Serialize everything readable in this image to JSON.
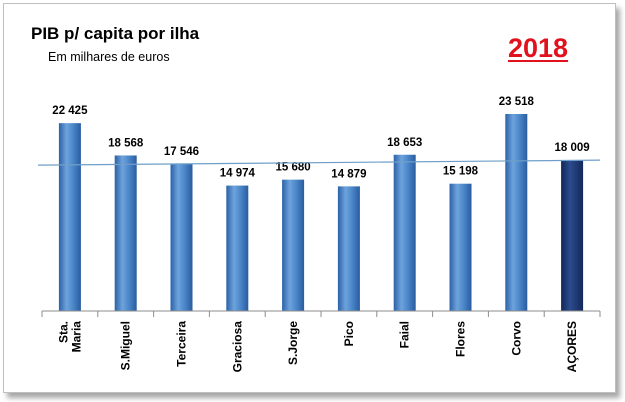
{
  "header": {
    "title": "PIB p/ capita por ilha",
    "subtitle": "Em milhares de euros",
    "year": "2018"
  },
  "colors": {
    "bar": "#3f7bc2",
    "bar_highlight": "#1f3a73",
    "reference_line": "#6f9fc8",
    "year": "#e0121d"
  },
  "chart_data": {
    "type": "bar",
    "categories": [
      [
        "Sta.",
        "Maria"
      ],
      [
        "S.Miguel"
      ],
      [
        "Terceira"
      ],
      [
        "Graciosa"
      ],
      [
        "S.Jorge"
      ],
      [
        "Pico"
      ],
      [
        "Faial"
      ],
      [
        "Flores"
      ],
      [
        "Corvo"
      ],
      [
        "AÇORES"
      ]
    ],
    "values": [
      22425,
      18568,
      17546,
      14974,
      15680,
      14879,
      18653,
      15198,
      23518,
      18009
    ],
    "value_labels": [
      "22 425",
      "18 568",
      "17 546",
      "14 974",
      "15 680",
      "14 879",
      "18 653",
      "15 198",
      "23 518",
      "18 009"
    ],
    "highlight_category": "AÇORES",
    "reference_line_value": 18009,
    "ylim": [
      0,
      25000
    ],
    "grid": false,
    "legend": "none"
  }
}
